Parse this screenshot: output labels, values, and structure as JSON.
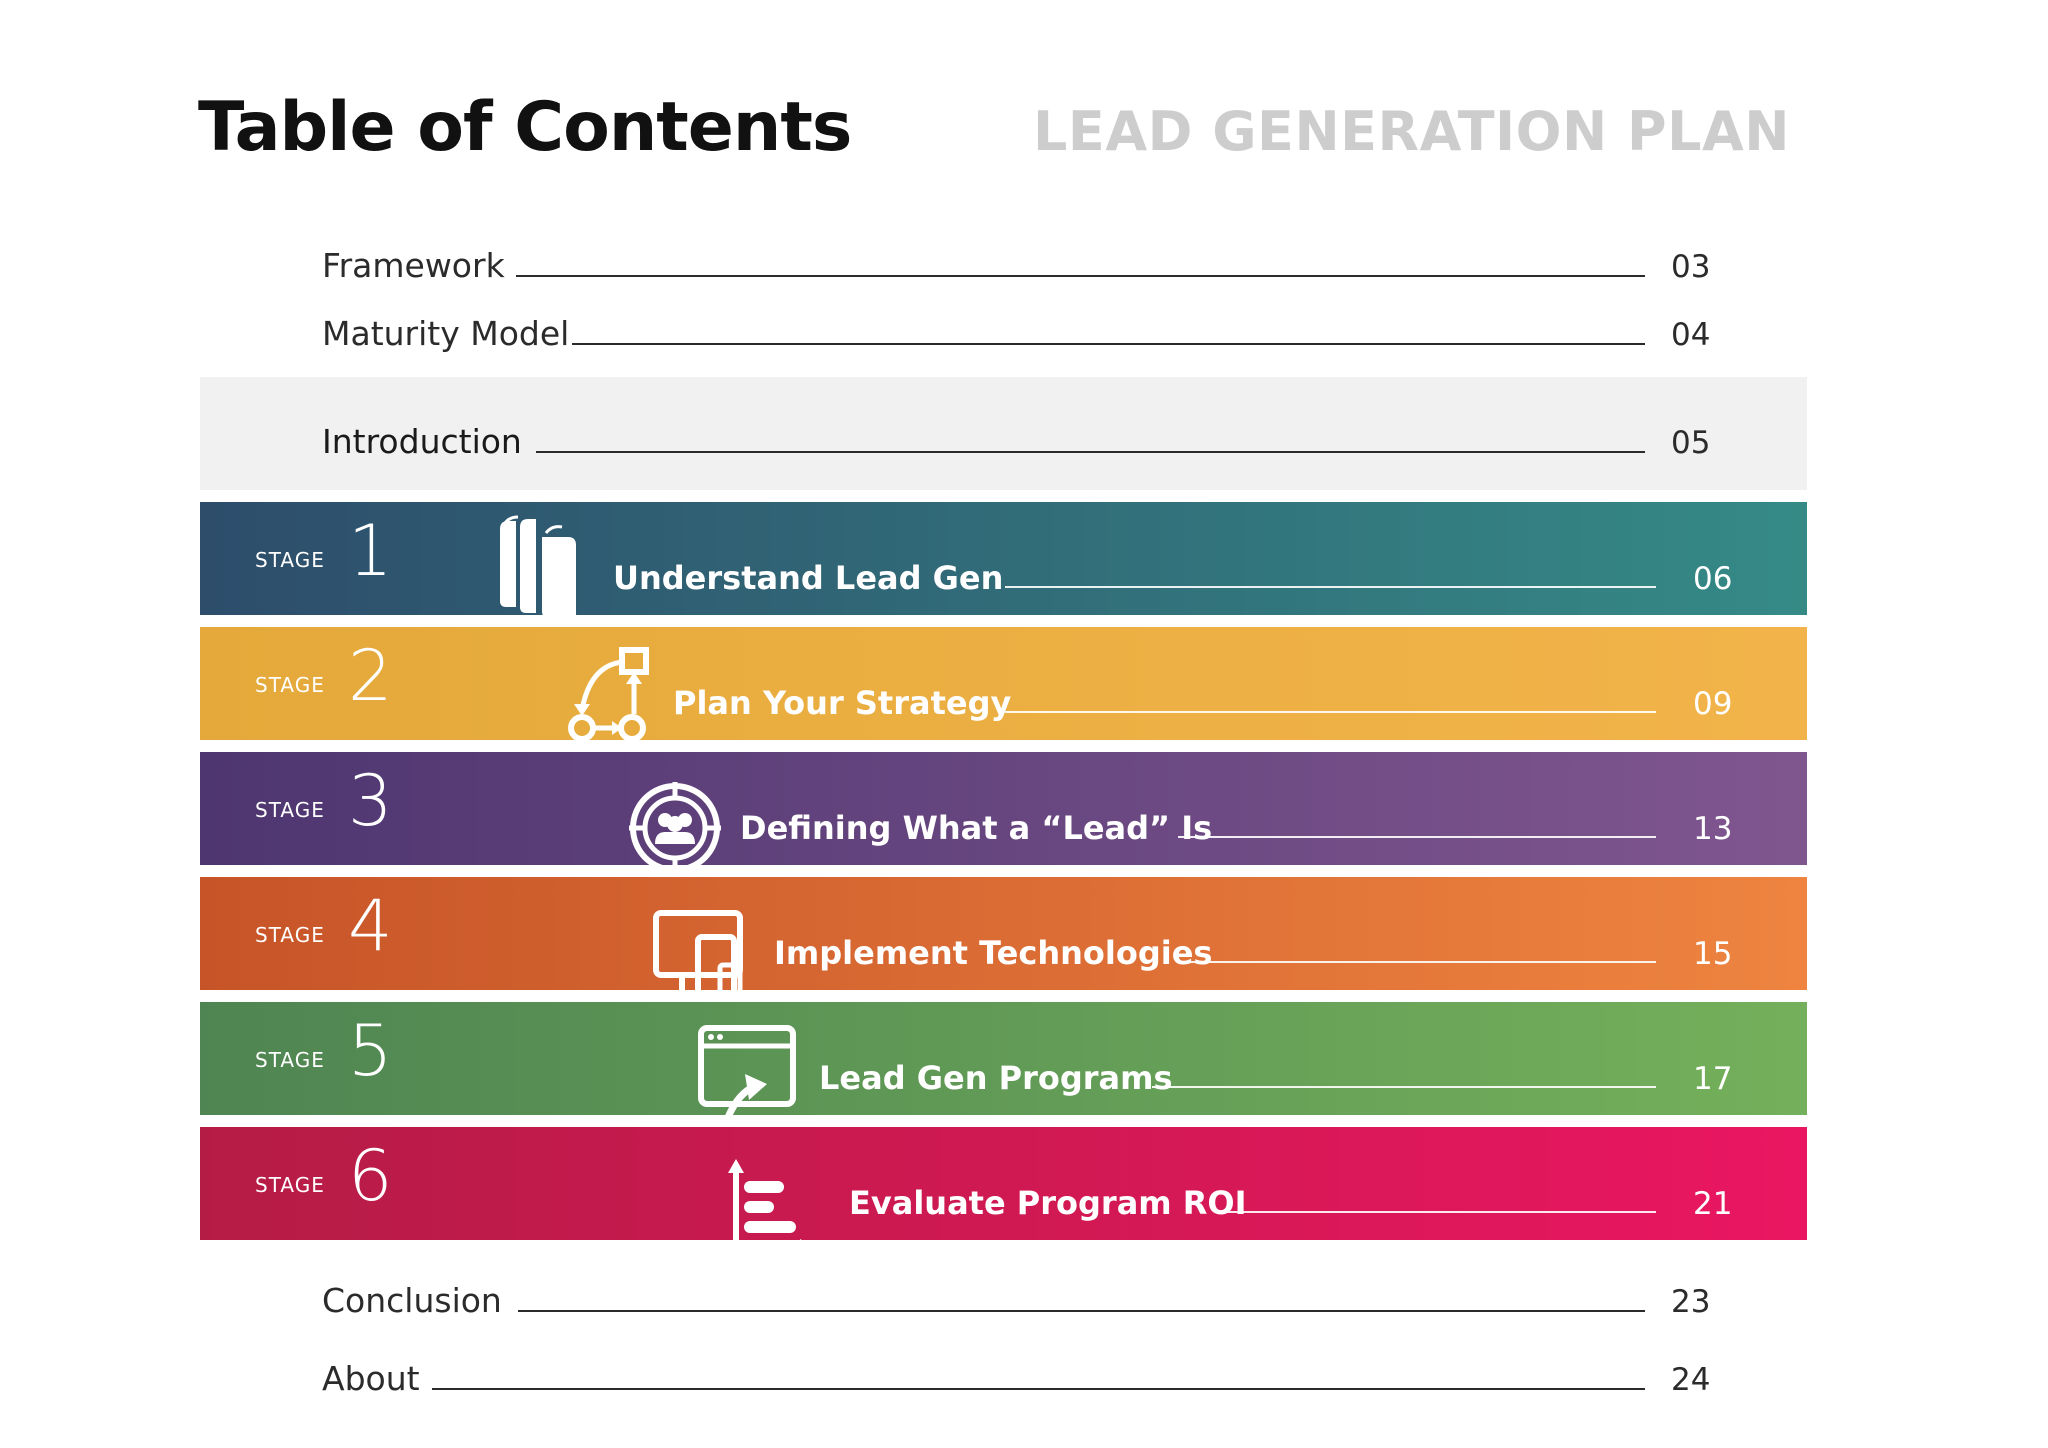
{
  "header": {
    "title": "Table of Contents",
    "subtitle": "LEAD GENERATION PLAN"
  },
  "entries_top": [
    {
      "label": "Framework",
      "page": "03"
    },
    {
      "label": "Maturity Model",
      "page": "04"
    },
    {
      "label": "Introduction",
      "page": "05"
    }
  ],
  "stages": [
    {
      "word": "STAGE",
      "number": "1",
      "label": "Understand Lead Gen",
      "page": "06",
      "icon": "books-icon",
      "color_start": "#2d4d6b",
      "color_end": "#358a86"
    },
    {
      "word": "STAGE",
      "number": "2",
      "label": "Plan Your Strategy",
      "page": "09",
      "icon": "strategy-flow-icon",
      "color_start": "#e4a93a",
      "color_end": "#f2b44a"
    },
    {
      "word": "STAGE",
      "number": "3",
      "label": "Defining What a “Lead” Is",
      "page": "13",
      "icon": "target-people-icon",
      "color_start": "#4e3670",
      "color_end": "#80568f"
    },
    {
      "word": "STAGE",
      "number": "4",
      "label": "Implement Technologies",
      "page": "15",
      "icon": "devices-icon",
      "color_start": "#c75428",
      "color_end": "#ee8440"
    },
    {
      "word": "STAGE",
      "number": "5",
      "label": "Lead Gen Programs",
      "page": "17",
      "icon": "browser-arrow-icon",
      "color_start": "#4f8552",
      "color_end": "#74b05b"
    },
    {
      "word": "STAGE",
      "number": "6",
      "label": "Evaluate Program ROI",
      "page": "21",
      "icon": "bar-chart-icon",
      "color_start": "#b51c45",
      "color_end": "#ea1661"
    }
  ],
  "entries_bottom": [
    {
      "label": "Conclusion",
      "page": "23"
    },
    {
      "label": "About",
      "page": "24"
    }
  ]
}
